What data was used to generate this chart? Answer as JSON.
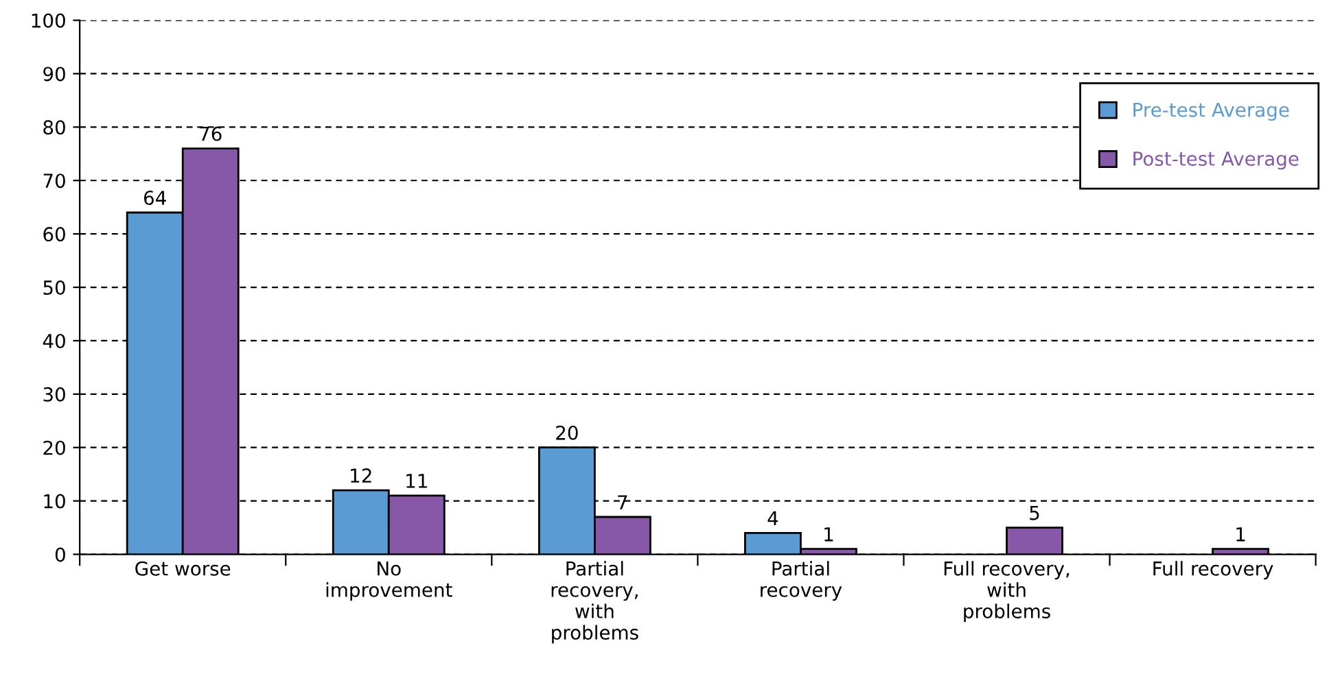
{
  "chart_data": {
    "type": "bar",
    "categories": [
      "Get worse",
      "No\nimprovement",
      "Partial\nrecovery,\nwith\nproblems",
      "Partial\nrecovery",
      "Full recovery,\nwith\nproblems",
      "Full recovery"
    ],
    "series": [
      {
        "name": "Pre-test Average",
        "color": "#5b9bd5",
        "values": [
          64,
          12,
          20,
          4,
          null,
          null
        ]
      },
      {
        "name": "Post-test Average",
        "color": "#8757a8",
        "values": [
          76,
          11,
          7,
          1,
          5,
          1
        ]
      }
    ],
    "ylim": [
      0,
      100
    ],
    "yticks": [
      0,
      10,
      20,
      30,
      40,
      50,
      60,
      70,
      80,
      90,
      100
    ],
    "grid": "y",
    "legend": "top right",
    "data_labels": true
  }
}
